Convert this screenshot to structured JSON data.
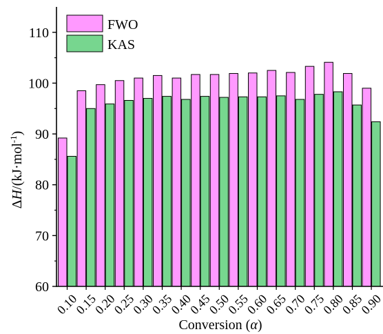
{
  "chart_data": {
    "type": "bar",
    "categories": [
      "0.10",
      "0.15",
      "0.20",
      "0.25",
      "0.30",
      "0.35",
      "0.40",
      "0.45",
      "0.50",
      "0.55",
      "0.60",
      "0.65",
      "0.70",
      "0.75",
      "0.80",
      "0.85",
      "0.90"
    ],
    "series": [
      {
        "name": "FWO",
        "color": "#ff99ff",
        "values": [
          89.2,
          98.5,
          99.7,
          100.5,
          101.0,
          101.5,
          101.0,
          101.7,
          101.7,
          101.9,
          102.0,
          102.5,
          102.1,
          103.3,
          104.1,
          101.9,
          99.0
        ]
      },
      {
        "name": "KAS",
        "color": "#77d68f",
        "values": [
          85.6,
          95.0,
          95.9,
          96.6,
          97.0,
          97.4,
          96.8,
          97.4,
          97.2,
          97.3,
          97.3,
          97.5,
          96.8,
          97.8,
          98.3,
          95.7,
          92.4
        ]
      }
    ],
    "ylim": [
      60,
      115
    ],
    "yticks": [
      60,
      70,
      80,
      90,
      100,
      110
    ],
    "ylabel": {
      "prefix": "Δ",
      "var": "H",
      "rest": "/(kJ·mol",
      "sup": "-1",
      "close": ")"
    },
    "xlabel": {
      "text": "Conversion (",
      "var": "α",
      "close": ")"
    },
    "legend": "top-left",
    "grid": false
  }
}
